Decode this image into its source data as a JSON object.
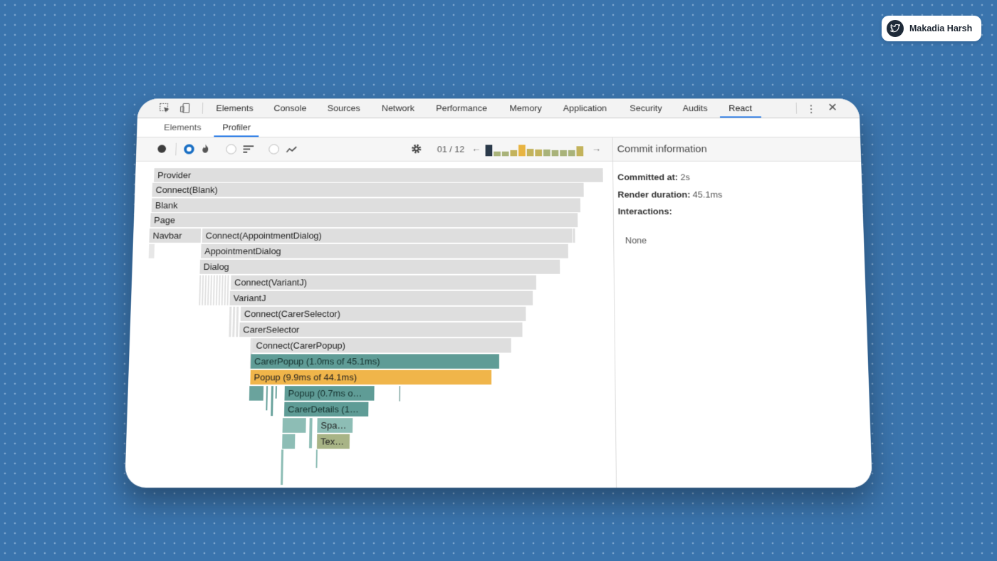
{
  "badge": {
    "name": "Makadia Harsh",
    "icon": "twitter-bird-icon"
  },
  "devtools": {
    "tabs": [
      "Elements",
      "Console",
      "Sources",
      "Network",
      "Performance",
      "Memory",
      "Application",
      "Security",
      "Audits",
      "React"
    ],
    "active_tab": "React",
    "subtabs": [
      "Elements",
      "Profiler"
    ],
    "active_subtab": "Profiler"
  },
  "toolbar": {
    "commit_counter": "01 / 12",
    "commit_bars": [
      {
        "level": 0.9,
        "color": "#2b3a4a"
      },
      {
        "level": 0.35,
        "color": "#a9b37a"
      },
      {
        "level": 0.35,
        "color": "#a9b37a"
      },
      {
        "level": 0.45,
        "color": "#c3b35c"
      },
      {
        "level": 0.9,
        "color": "#e8b441"
      },
      {
        "level": 0.6,
        "color": "#c3b35c"
      },
      {
        "level": 0.55,
        "color": "#c3b35c"
      },
      {
        "level": 0.55,
        "color": "#a9b37a"
      },
      {
        "level": 0.45,
        "color": "#a9b37a"
      },
      {
        "level": 0.45,
        "color": "#a9b37a"
      },
      {
        "level": 0.45,
        "color": "#a9b37a"
      },
      {
        "level": 0.8,
        "color": "#c3b35c"
      }
    ]
  },
  "flame": {
    "provider": "Provider",
    "connect_blank": "Connect(Blank)",
    "blank": "Blank",
    "page": "Page",
    "navbar": "Navbar",
    "connect_appointment_dialog": "Connect(AppointmentDialog)",
    "appointment_dialog": "AppointmentDialog",
    "dialog": "Dialog",
    "connect_variantj": "Connect(VariantJ)",
    "variantj": "VariantJ",
    "connect_carer_selector": "Connect(CarerSelector)",
    "carer_selector": "CarerSelector",
    "connect_carer_popup": "Connect(CarerPopup)",
    "carer_popup": "CarerPopup (1.0ms of 45.1ms)",
    "popup_outer": "Popup (9.9ms of 44.1ms)",
    "popup_inner": "Popup (0.7ms o…",
    "carer_details": "CarerDetails (1…",
    "spa": "Spa…",
    "tex": "Tex…"
  },
  "commit_info": {
    "title": "Commit information",
    "committed_at_label": "Committed at:",
    "committed_at_value": "2s",
    "render_duration_label": "Render duration:",
    "render_duration_value": "45.1ms",
    "interactions_label": "Interactions:",
    "interactions_value": "None"
  }
}
